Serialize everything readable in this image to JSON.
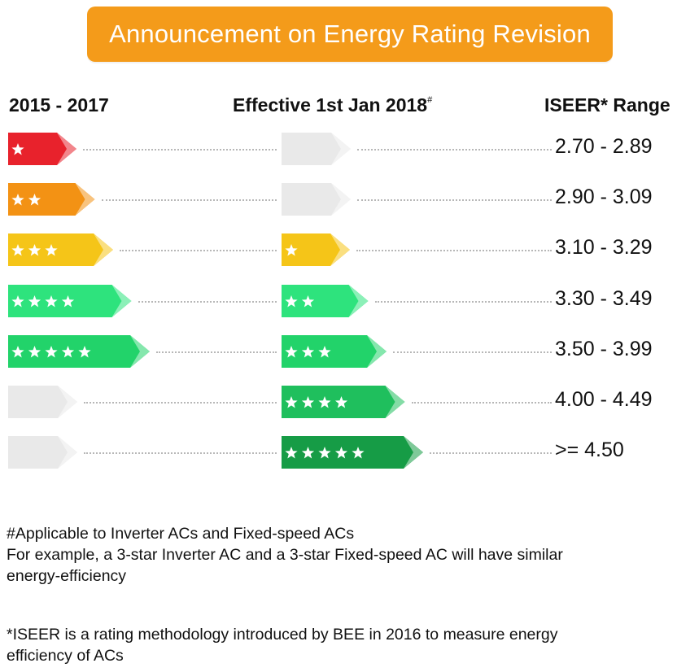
{
  "title": "Announcement on Energy Rating Revision",
  "headers": {
    "old": "2015 - 2017",
    "new": "Effective 1st Jan 2018",
    "new_mark": "#",
    "range": "ISEER* Range"
  },
  "rows": [
    {
      "old_stars": 1,
      "old_color": "#e8222c",
      "new_stars": 0,
      "new_color": "#e9e9e9",
      "range": "2.70 - 2.89"
    },
    {
      "old_stars": 2,
      "old_color": "#f39214",
      "new_stars": 0,
      "new_color": "#e9e9e9",
      "range": "2.90 - 3.09"
    },
    {
      "old_stars": 3,
      "old_color": "#f5c518",
      "new_stars": 1,
      "new_color": "#f5c518",
      "range": "3.10 - 3.29"
    },
    {
      "old_stars": 4,
      "old_color": "#2ee37d",
      "new_stars": 2,
      "new_color": "#2ee37d",
      "range": "3.30 - 3.49"
    },
    {
      "old_stars": 5,
      "old_color": "#22d36a",
      "new_stars": 3,
      "new_color": "#22d36a",
      "range": "3.50 - 3.99"
    },
    {
      "old_stars": 0,
      "old_color": "#e9e9e9",
      "new_stars": 4,
      "new_color": "#1fbf5d",
      "range": "4.00 - 4.49"
    },
    {
      "old_stars": 0,
      "old_color": "#e9e9e9",
      "new_stars": 5,
      "new_color": "#169c46",
      "range": ">= 4.50"
    }
  ],
  "footnotes": {
    "line1": "#Applicable to Inverter ACs and Fixed-speed ACs",
    "line2": "For example, a 3-star Inverter AC and a 3-star Fixed-speed AC will have similar",
    "line3": "energy-efficiency",
    "line4": "*ISEER is a rating methodology introduced by BEE in 2016 to measure energy",
    "line5": "efficiency of ACs"
  }
}
